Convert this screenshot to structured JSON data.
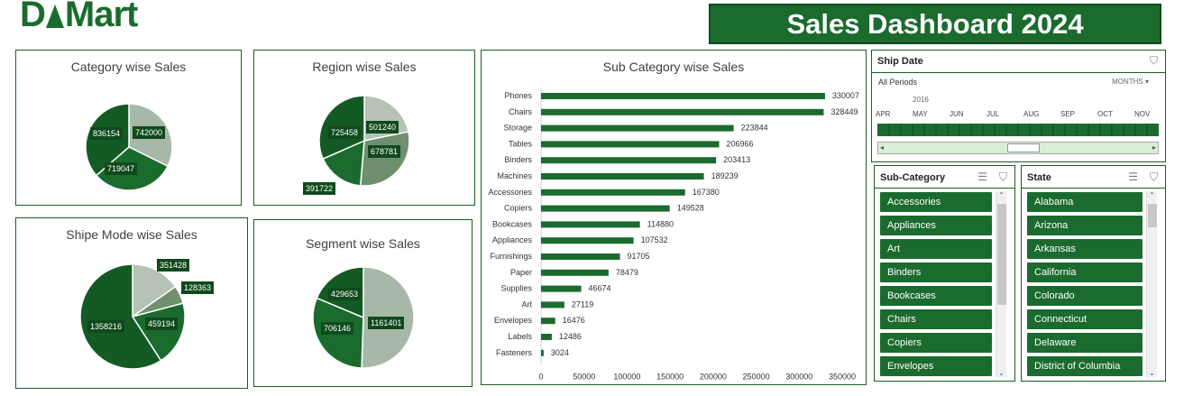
{
  "logo": {
    "left": "D",
    "right": "Mart"
  },
  "title": "Sales Dashboard 2024",
  "category": {
    "title": "Category wise Sales",
    "labels": [
      "836154",
      "742000",
      "719047"
    ]
  },
  "region": {
    "title": "Region wise Sales",
    "labels": [
      "725458",
      "501240",
      "678781",
      "391722"
    ]
  },
  "shipmode": {
    "title": "Shipe Mode wise Sales",
    "labels": [
      "1358216",
      "351428",
      "128363",
      "459194"
    ]
  },
  "segment": {
    "title": "Segment wise Sales",
    "labels": [
      "429653",
      "706146",
      "1161401"
    ]
  },
  "subcat_chart_title": "Sub Category wise Sales",
  "chart_data": [
    {
      "type": "pie",
      "title": "Category wise Sales",
      "values": [
        742000,
        719047,
        836154
      ],
      "colors": [
        "#a8b8a8",
        "#1b6b2f",
        "#145a24"
      ]
    },
    {
      "type": "pie",
      "title": "Region wise Sales",
      "values": [
        501240,
        678781,
        391722,
        725458
      ],
      "colors": [
        "#b5c2b5",
        "#6f8f6f",
        "#1b6b2f",
        "#145a24"
      ]
    },
    {
      "type": "pie",
      "title": "Shipe Mode wise Sales",
      "values": [
        351428,
        128363,
        459194,
        1358216
      ],
      "colors": [
        "#b5c2b5",
        "#6f8f6f",
        "#1b6b2f",
        "#145a24"
      ]
    },
    {
      "type": "pie",
      "title": "Segment wise Sales",
      "values": [
        1161401,
        706146,
        429653
      ],
      "colors": [
        "#a8b8a8",
        "#1b6b2f",
        "#145a24"
      ]
    },
    {
      "type": "bar",
      "orientation": "horizontal",
      "title": "Sub Category wise Sales",
      "categories": [
        "Phones",
        "Chairs",
        "Storage",
        "Tables",
        "Binders",
        "Machines",
        "Accessories",
        "Copiers",
        "Bookcases",
        "Appliances",
        "Furnishings",
        "Paper",
        "Supplies",
        "Art",
        "Envelopes",
        "Labels",
        "Fasteners"
      ],
      "values": [
        330007,
        328449,
        223844,
        206966,
        203413,
        189239,
        167380,
        149528,
        114880,
        107532,
        91705,
        78479,
        46674,
        27119,
        16476,
        12486,
        3024
      ],
      "xticks": [
        "0",
        "50000",
        "100000",
        "150000",
        "200000",
        "250000",
        "300000",
        "350000"
      ],
      "xlim": [
        0,
        350000
      ],
      "color": "#1b6b2f"
    }
  ],
  "shipdate": {
    "title": "Ship Date",
    "period": "All Periods",
    "unit": "MONTHS",
    "year": "2016",
    "months": [
      "APR",
      "MAY",
      "JUN",
      "JUL",
      "AUG",
      "SEP",
      "OCT",
      "NOV"
    ]
  },
  "subcategory_slicer": {
    "title": "Sub-Category",
    "items": [
      "Accessories",
      "Appliances",
      "Art",
      "Binders",
      "Bookcases",
      "Chairs",
      "Copiers",
      "Envelopes"
    ]
  },
  "state_slicer": {
    "title": "State",
    "items": [
      "Alabama",
      "Arizona",
      "Arkansas",
      "California",
      "Colorado",
      "Connecticut",
      "Delaware",
      "District of Columbia"
    ]
  }
}
